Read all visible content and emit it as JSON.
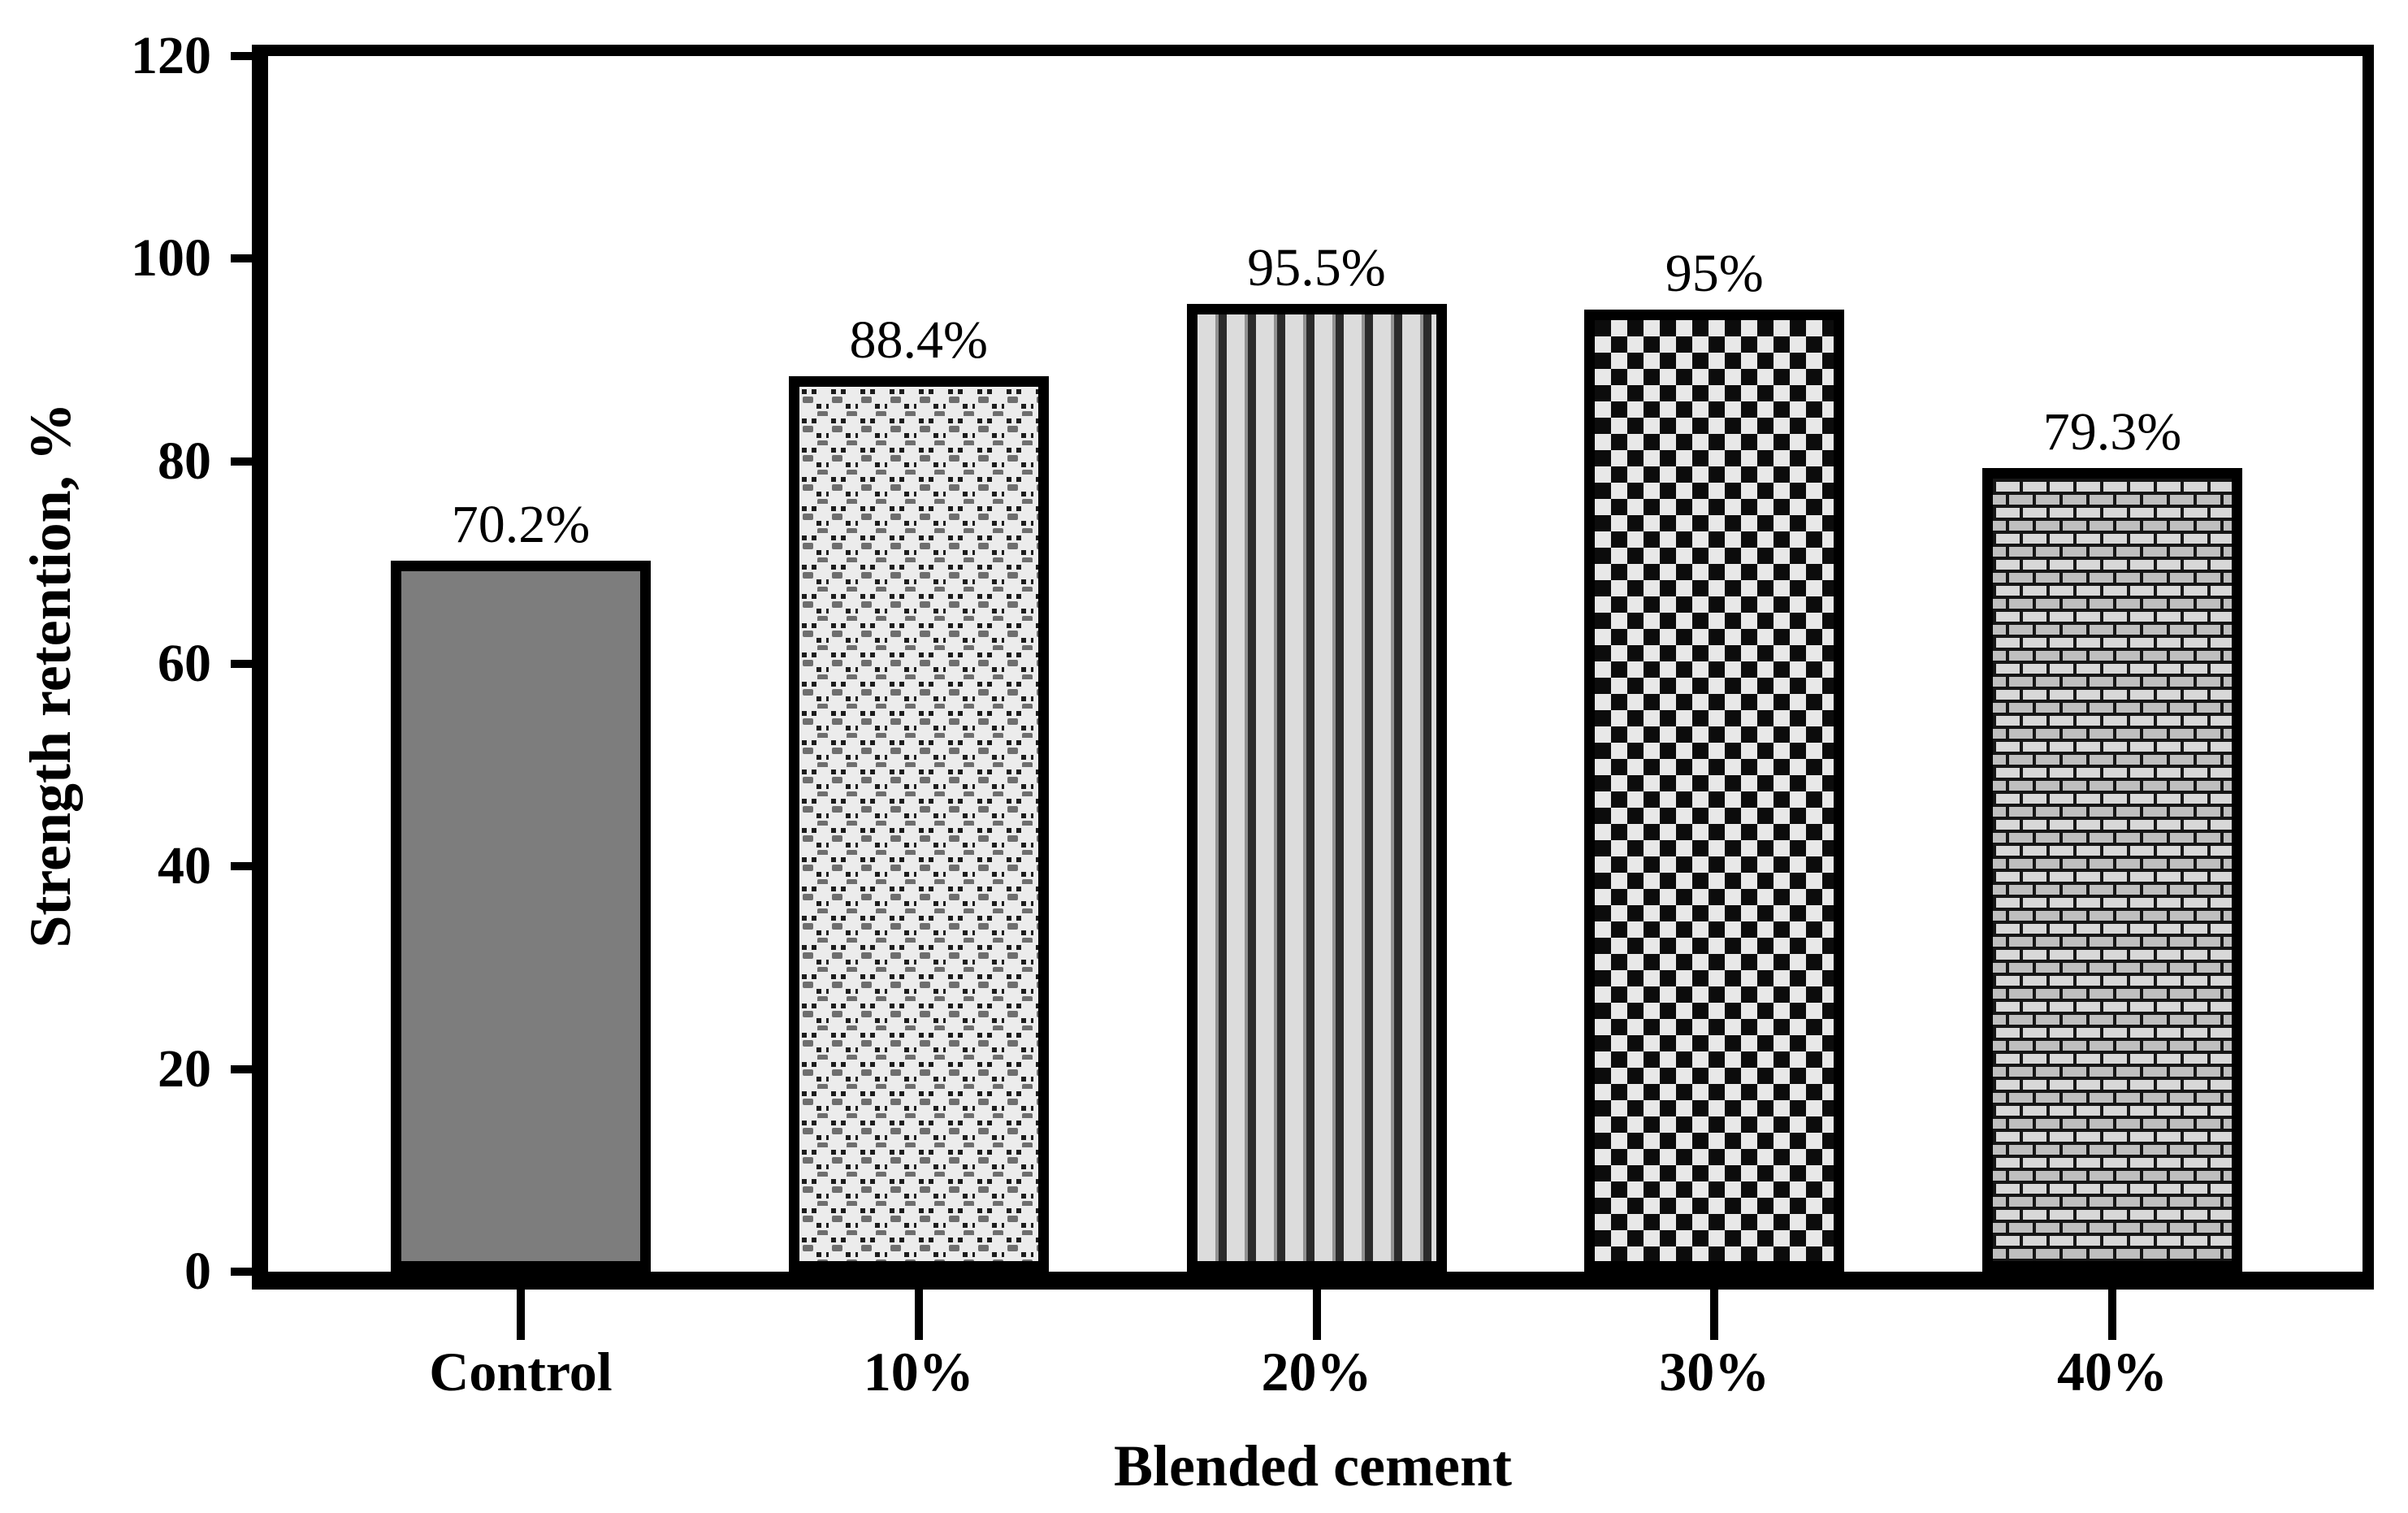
{
  "chart_data": {
    "type": "bar",
    "title": "",
    "categories": [
      "Control",
      "10%",
      "20%",
      "30%",
      "40%"
    ],
    "values": [
      70.2,
      88.4,
      95.5,
      95,
      79.3
    ],
    "bar_value_labels": [
      "70.2%",
      "88.4%",
      "95.5%",
      "95%",
      "79.3%"
    ],
    "xlabel": "Blended cement",
    "ylabel": "Strength retention, %",
    "ylim": [
      0,
      120
    ],
    "yticks": [
      0,
      20,
      40,
      60,
      80,
      100,
      120
    ],
    "grid": false,
    "legend": false,
    "bar_patterns": [
      "solid-gray",
      "stipple-dots",
      "vertical-stripes",
      "checkerboard",
      "brick"
    ],
    "colors": {
      "axis": "#000000",
      "bar_solid_fill": "#7d7d7d",
      "pattern_light": "#dcdcdc",
      "pattern_dark": "#161616",
      "stipple_background": "#ececec",
      "stipple_mark_gray": "#6e6e6e",
      "stripe_dark": "#2b2b2b",
      "checker_light": "#e8e8e8",
      "checker_dark": "#0c0c0c",
      "brick_light": "#d8d8d8",
      "brick_mid": "#bfbfbf"
    }
  }
}
